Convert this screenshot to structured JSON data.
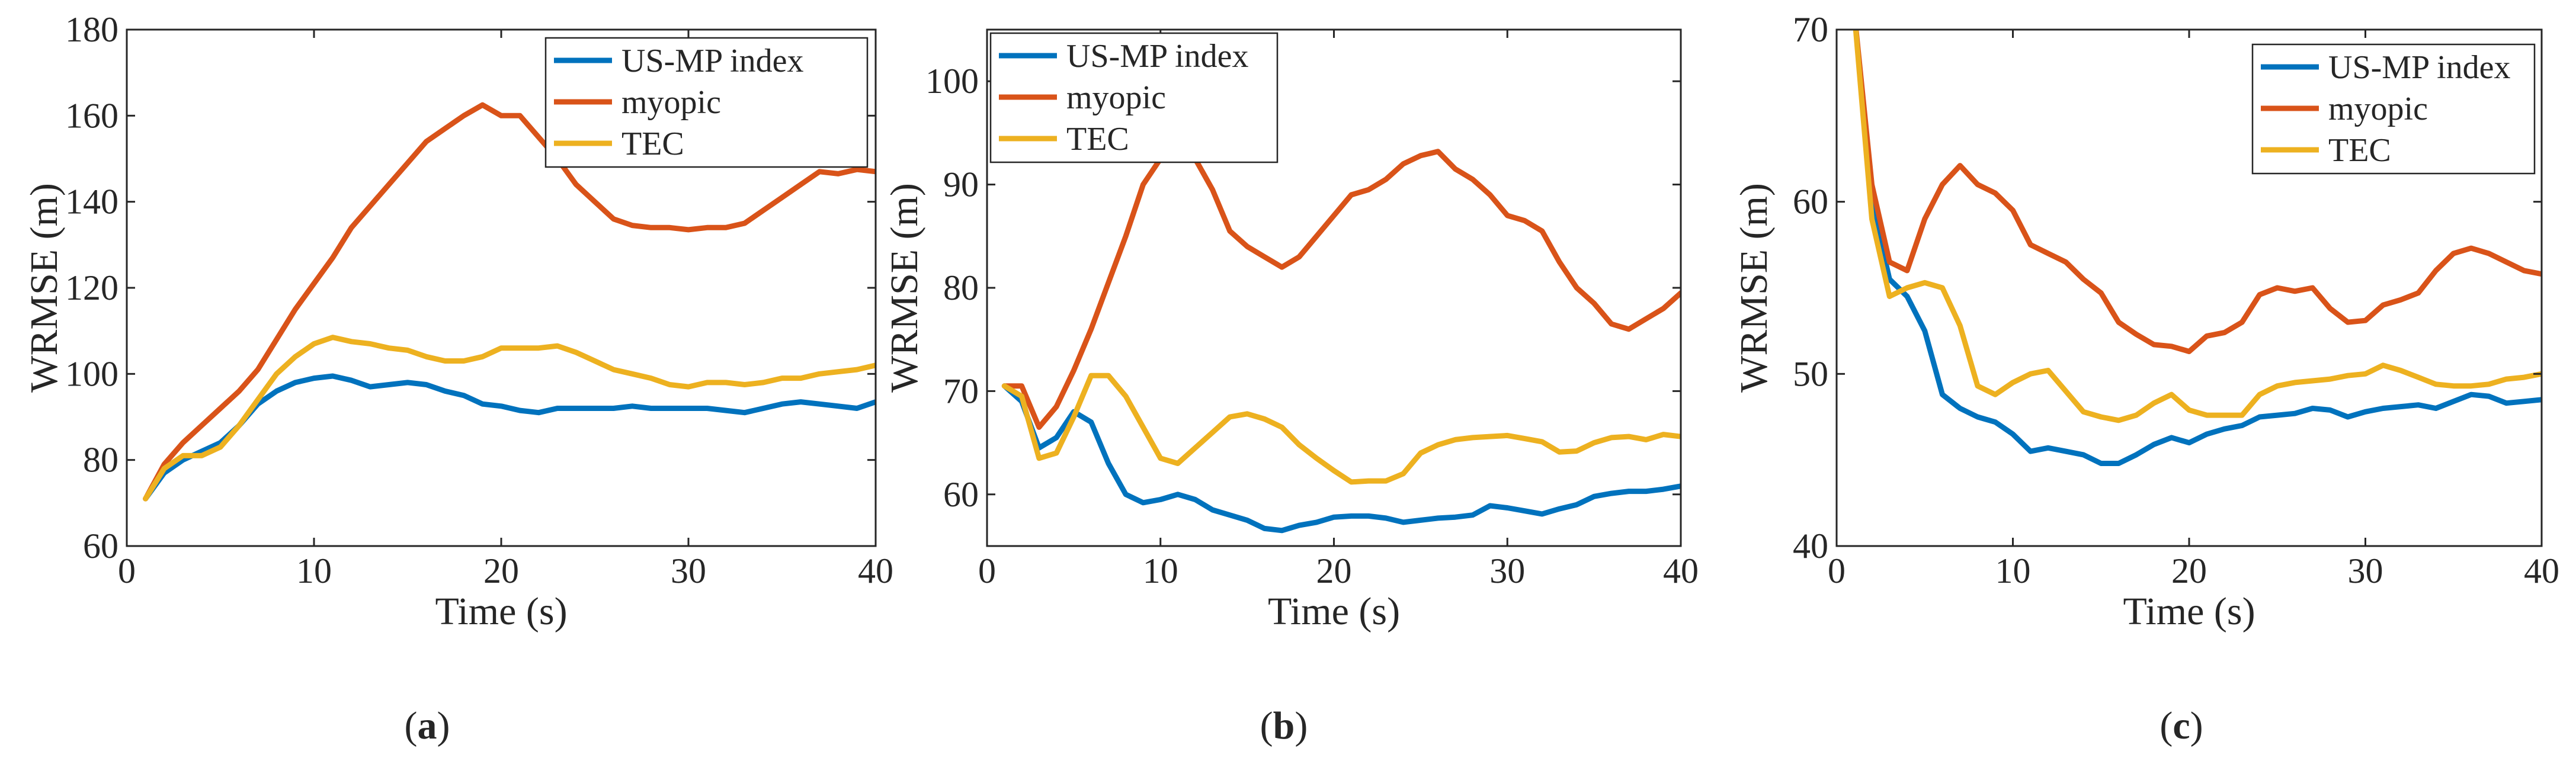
{
  "colors": {
    "US-MP index": "#0072BD",
    "myopic": "#D95319",
    "TEC": "#EDB120",
    "axis": "#262626"
  },
  "chart_data": [
    {
      "type": "line",
      "panel_label": "a",
      "title": "",
      "xlabel": "Time (s)",
      "ylabel": "WRMSE (m)",
      "xlim": [
        0,
        40
      ],
      "ylim": [
        60,
        180
      ],
      "xticks": [
        0,
        10,
        20,
        30,
        40
      ],
      "yticks": [
        60,
        80,
        100,
        120,
        140,
        160,
        180
      ],
      "grid": false,
      "legend_position": "top-right",
      "x": [
        1,
        2,
        3,
        4,
        5,
        6,
        7,
        8,
        9,
        10,
        11,
        12,
        13,
        14,
        15,
        16,
        17,
        18,
        19,
        20,
        21,
        22,
        23,
        24,
        25,
        26,
        27,
        28,
        29,
        30,
        31,
        32,
        33,
        34,
        35,
        36,
        37,
        38,
        39,
        40
      ],
      "series": [
        {
          "name": "US-MP index",
          "values": [
            71,
            77,
            80,
            82,
            84,
            88,
            93,
            96,
            98,
            99,
            99.5,
            98.5,
            97,
            97.5,
            98,
            97.5,
            96,
            95,
            93,
            92.5,
            91.5,
            91,
            92,
            92,
            92,
            92,
            92.5,
            92,
            92,
            92,
            92,
            91.5,
            91,
            92,
            93,
            93.5,
            93,
            92.5,
            92,
            93.5
          ]
        },
        {
          "name": "myopic",
          "values": [
            71,
            79,
            84,
            88,
            92,
            96,
            101,
            108,
            115,
            121,
            127,
            134,
            139,
            144,
            149,
            154,
            157,
            160,
            162.5,
            160,
            160,
            155,
            150,
            144,
            140,
            136,
            134.5,
            134,
            134,
            133.5,
            134,
            134,
            135,
            138,
            141,
            144,
            147,
            146.5,
            147.5,
            147
          ]
        },
        {
          "name": "TEC",
          "values": [
            71,
            78,
            81,
            81,
            83,
            88,
            94,
            100,
            104,
            107,
            108.5,
            107.5,
            107,
            106,
            105.5,
            104,
            103,
            103,
            104,
            106,
            106,
            106,
            106.5,
            105,
            103,
            101,
            100,
            99,
            97.5,
            97,
            98,
            98,
            97.5,
            98,
            99,
            99,
            100,
            100.5,
            101,
            102
          ]
        }
      ]
    },
    {
      "type": "line",
      "panel_label": "b",
      "title": "",
      "xlabel": "Time (s)",
      "ylabel": "WRMSE (m)",
      "xlim": [
        0,
        40
      ],
      "ylim": [
        55,
        105
      ],
      "xticks": [
        0,
        10,
        20,
        30,
        40
      ],
      "yticks": [
        60,
        70,
        80,
        90,
        100
      ],
      "grid": false,
      "legend_position": "top-left",
      "x": [
        1,
        2,
        3,
        4,
        5,
        6,
        7,
        8,
        9,
        10,
        11,
        12,
        13,
        14,
        15,
        16,
        17,
        18,
        19,
        20,
        21,
        22,
        23,
        24,
        25,
        26,
        27,
        28,
        29,
        30,
        31,
        32,
        33,
        34,
        35,
        36,
        37,
        38,
        39,
        40
      ],
      "series": [
        {
          "name": "US-MP index",
          "values": [
            70.5,
            69,
            64.5,
            65.5,
            68,
            67,
            63,
            60,
            59.2,
            59.5,
            60,
            59.5,
            58.5,
            58,
            57.5,
            56.7,
            56.5,
            57,
            57.3,
            57.8,
            57.9,
            57.9,
            57.7,
            57.3,
            57.5,
            57.7,
            57.8,
            58,
            58.9,
            58.7,
            58.4,
            58.1,
            58.6,
            59,
            59.8,
            60.1,
            60.3,
            60.3,
            60.5,
            60.8
          ]
        },
        {
          "name": "myopic",
          "values": [
            70.5,
            70.5,
            66.5,
            68.5,
            72,
            76,
            80.5,
            85,
            90,
            92.5,
            93.5,
            92.5,
            89.5,
            85.5,
            84,
            83,
            82,
            83,
            85,
            87,
            89,
            89.5,
            90.5,
            92,
            92.8,
            93.2,
            91.5,
            90.5,
            89,
            87,
            86.5,
            85.5,
            82.5,
            80,
            78.5,
            76.5,
            76,
            77,
            78,
            79.5
          ]
        },
        {
          "name": "TEC",
          "values": [
            70.5,
            69.5,
            63.5,
            64,
            67.5,
            71.5,
            71.5,
            69.5,
            66.5,
            63.5,
            63,
            64.5,
            66,
            67.5,
            67.8,
            67.3,
            66.5,
            64.8,
            63.5,
            62.3,
            61.2,
            61.3,
            61.3,
            62,
            64,
            64.8,
            65.3,
            65.5,
            65.6,
            65.7,
            65.4,
            65.1,
            64.1,
            64.2,
            65,
            65.5,
            65.6,
            65.3,
            65.8,
            65.6
          ]
        }
      ]
    },
    {
      "type": "line",
      "panel_label": "c",
      "title": "",
      "xlabel": "Time (s)",
      "ylabel": "WRMSE (m)",
      "xlim": [
        0,
        40
      ],
      "ylim": [
        40,
        70
      ],
      "xticks": [
        0,
        10,
        20,
        30,
        40
      ],
      "yticks": [
        40,
        50,
        60,
        70
      ],
      "grid": false,
      "legend_position": "top-right",
      "x": [
        1,
        2,
        3,
        4,
        5,
        6,
        7,
        8,
        9,
        10,
        11,
        12,
        13,
        14,
        15,
        16,
        17,
        18,
        19,
        20,
        21,
        22,
        23,
        24,
        25,
        26,
        27,
        28,
        29,
        30,
        31,
        32,
        33,
        34,
        35,
        36,
        37,
        38,
        39,
        40
      ],
      "series": [
        {
          "name": "US-MP index",
          "values": [
            71,
            60,
            55.5,
            54.5,
            52.5,
            48.8,
            48,
            47.5,
            47.2,
            46.5,
            45.5,
            45.7,
            45.5,
            45.3,
            44.8,
            44.8,
            45.3,
            45.9,
            46.3,
            46,
            46.5,
            46.8,
            47,
            47.5,
            47.6,
            47.7,
            48,
            47.9,
            47.5,
            47.8,
            48,
            48.1,
            48.2,
            48,
            48.4,
            48.8,
            48.7,
            48.3,
            48.4,
            48.5
          ]
        },
        {
          "name": "myopic",
          "values": [
            71,
            61,
            56.5,
            56,
            59,
            61,
            62.1,
            61,
            60.5,
            59.5,
            57.5,
            57,
            56.5,
            55.5,
            54.7,
            53,
            52.3,
            51.7,
            51.6,
            51.3,
            52.2,
            52.4,
            53,
            54.6,
            55,
            54.8,
            55,
            53.8,
            53,
            53.1,
            54,
            54.3,
            54.7,
            56,
            57,
            57.3,
            57,
            56.5,
            56,
            55.8
          ]
        },
        {
          "name": "TEC",
          "values": [
            71,
            59,
            54.5,
            55,
            55.3,
            55,
            52.8,
            49.3,
            48.8,
            49.5,
            50,
            50.2,
            49,
            47.8,
            47.5,
            47.3,
            47.6,
            48.3,
            48.8,
            47.9,
            47.6,
            47.6,
            47.6,
            48.8,
            49.3,
            49.5,
            49.6,
            49.7,
            49.9,
            50,
            50.5,
            50.2,
            49.8,
            49.4,
            49.3,
            49.3,
            49.4,
            49.7,
            49.8,
            50
          ]
        }
      ]
    }
  ]
}
